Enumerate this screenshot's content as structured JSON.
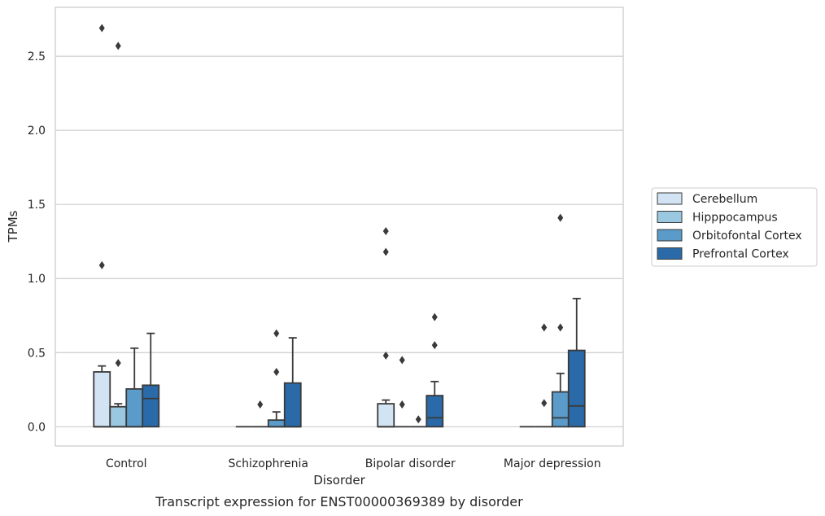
{
  "chart_data": {
    "type": "box",
    "xlabel": "Disorder",
    "ylabel": "TPMs",
    "caption": "Transcript expression for ENST00000369389 by disorder",
    "ylim": [
      -0.13,
      2.83
    ],
    "yticks": [
      "0.0",
      "0.5",
      "1.0",
      "1.5",
      "2.0",
      "2.5"
    ],
    "ytick_values": [
      0.0,
      0.5,
      1.0,
      1.5,
      2.0,
      2.5
    ],
    "grid": "horizontal",
    "legend_position": "right",
    "categories": [
      "Control",
      "Schizophrenia",
      "Bipolar disorder",
      "Major depression"
    ],
    "series": [
      {
        "name": "Cerebellum",
        "color": "#d2e3f3",
        "boxes": [
          {
            "min": 0.0,
            "q1": 0.0,
            "median": 0.0,
            "q3": 0.37,
            "max": 0.41,
            "outliers": [
              1.09,
              2.69
            ]
          },
          {
            "min": 0.0,
            "q1": 0.0,
            "median": 0.0,
            "q3": 0.0,
            "max": 0.0,
            "outliers": []
          },
          {
            "min": 0.0,
            "q1": 0.0,
            "median": 0.0,
            "q3": 0.155,
            "max": 0.18,
            "outliers": [
              0.48,
              1.18,
              1.32
            ]
          },
          {
            "min": 0.0,
            "q1": 0.0,
            "median": 0.0,
            "q3": 0.0,
            "max": 0.0,
            "outliers": []
          }
        ]
      },
      {
        "name": "Hipppocampus",
        "color": "#9ac8e0",
        "boxes": [
          {
            "min": 0.0,
            "q1": 0.0,
            "median": 0.0,
            "q3": 0.135,
            "max": 0.155,
            "outliers": [
              0.43,
              2.57
            ]
          },
          {
            "min": 0.0,
            "q1": 0.0,
            "median": 0.0,
            "q3": 0.0,
            "max": 0.0,
            "outliers": [
              0.15
            ]
          },
          {
            "min": 0.0,
            "q1": 0.0,
            "median": 0.0,
            "q3": 0.0,
            "max": 0.0,
            "outliers": [
              0.15,
              0.45
            ]
          },
          {
            "min": 0.0,
            "q1": 0.0,
            "median": 0.0,
            "q3": 0.0,
            "max": 0.0,
            "outliers": [
              0.16,
              0.67
            ]
          }
        ]
      },
      {
        "name": "Orbitofontal Cortex",
        "color": "#5a9bc9",
        "boxes": [
          {
            "min": 0.0,
            "q1": 0.0,
            "median": 0.0,
            "q3": 0.255,
            "max": 0.53,
            "outliers": []
          },
          {
            "min": 0.0,
            "q1": 0.0,
            "median": 0.0,
            "q3": 0.045,
            "max": 0.1,
            "outliers": [
              0.37,
              0.63
            ]
          },
          {
            "min": 0.0,
            "q1": 0.0,
            "median": 0.0,
            "q3": 0.0,
            "max": 0.0,
            "outliers": [
              0.05
            ]
          },
          {
            "min": 0.0,
            "q1": 0.0,
            "median": 0.06,
            "q3": 0.235,
            "max": 0.36,
            "outliers": [
              0.67,
              1.41
            ]
          }
        ]
      },
      {
        "name": "Prefrontal Cortex",
        "color": "#2a6aa8",
        "boxes": [
          {
            "min": 0.0,
            "q1": 0.0,
            "median": 0.19,
            "q3": 0.28,
            "max": 0.63,
            "outliers": []
          },
          {
            "min": 0.0,
            "q1": 0.0,
            "median": 0.0,
            "q3": 0.295,
            "max": 0.6,
            "outliers": []
          },
          {
            "min": 0.0,
            "q1": 0.0,
            "median": 0.06,
            "q3": 0.21,
            "max": 0.305,
            "outliers": [
              0.55,
              0.74
            ]
          },
          {
            "min": 0.0,
            "q1": 0.0,
            "median": 0.14,
            "q3": 0.515,
            "max": 0.865,
            "outliers": []
          }
        ]
      }
    ]
  }
}
